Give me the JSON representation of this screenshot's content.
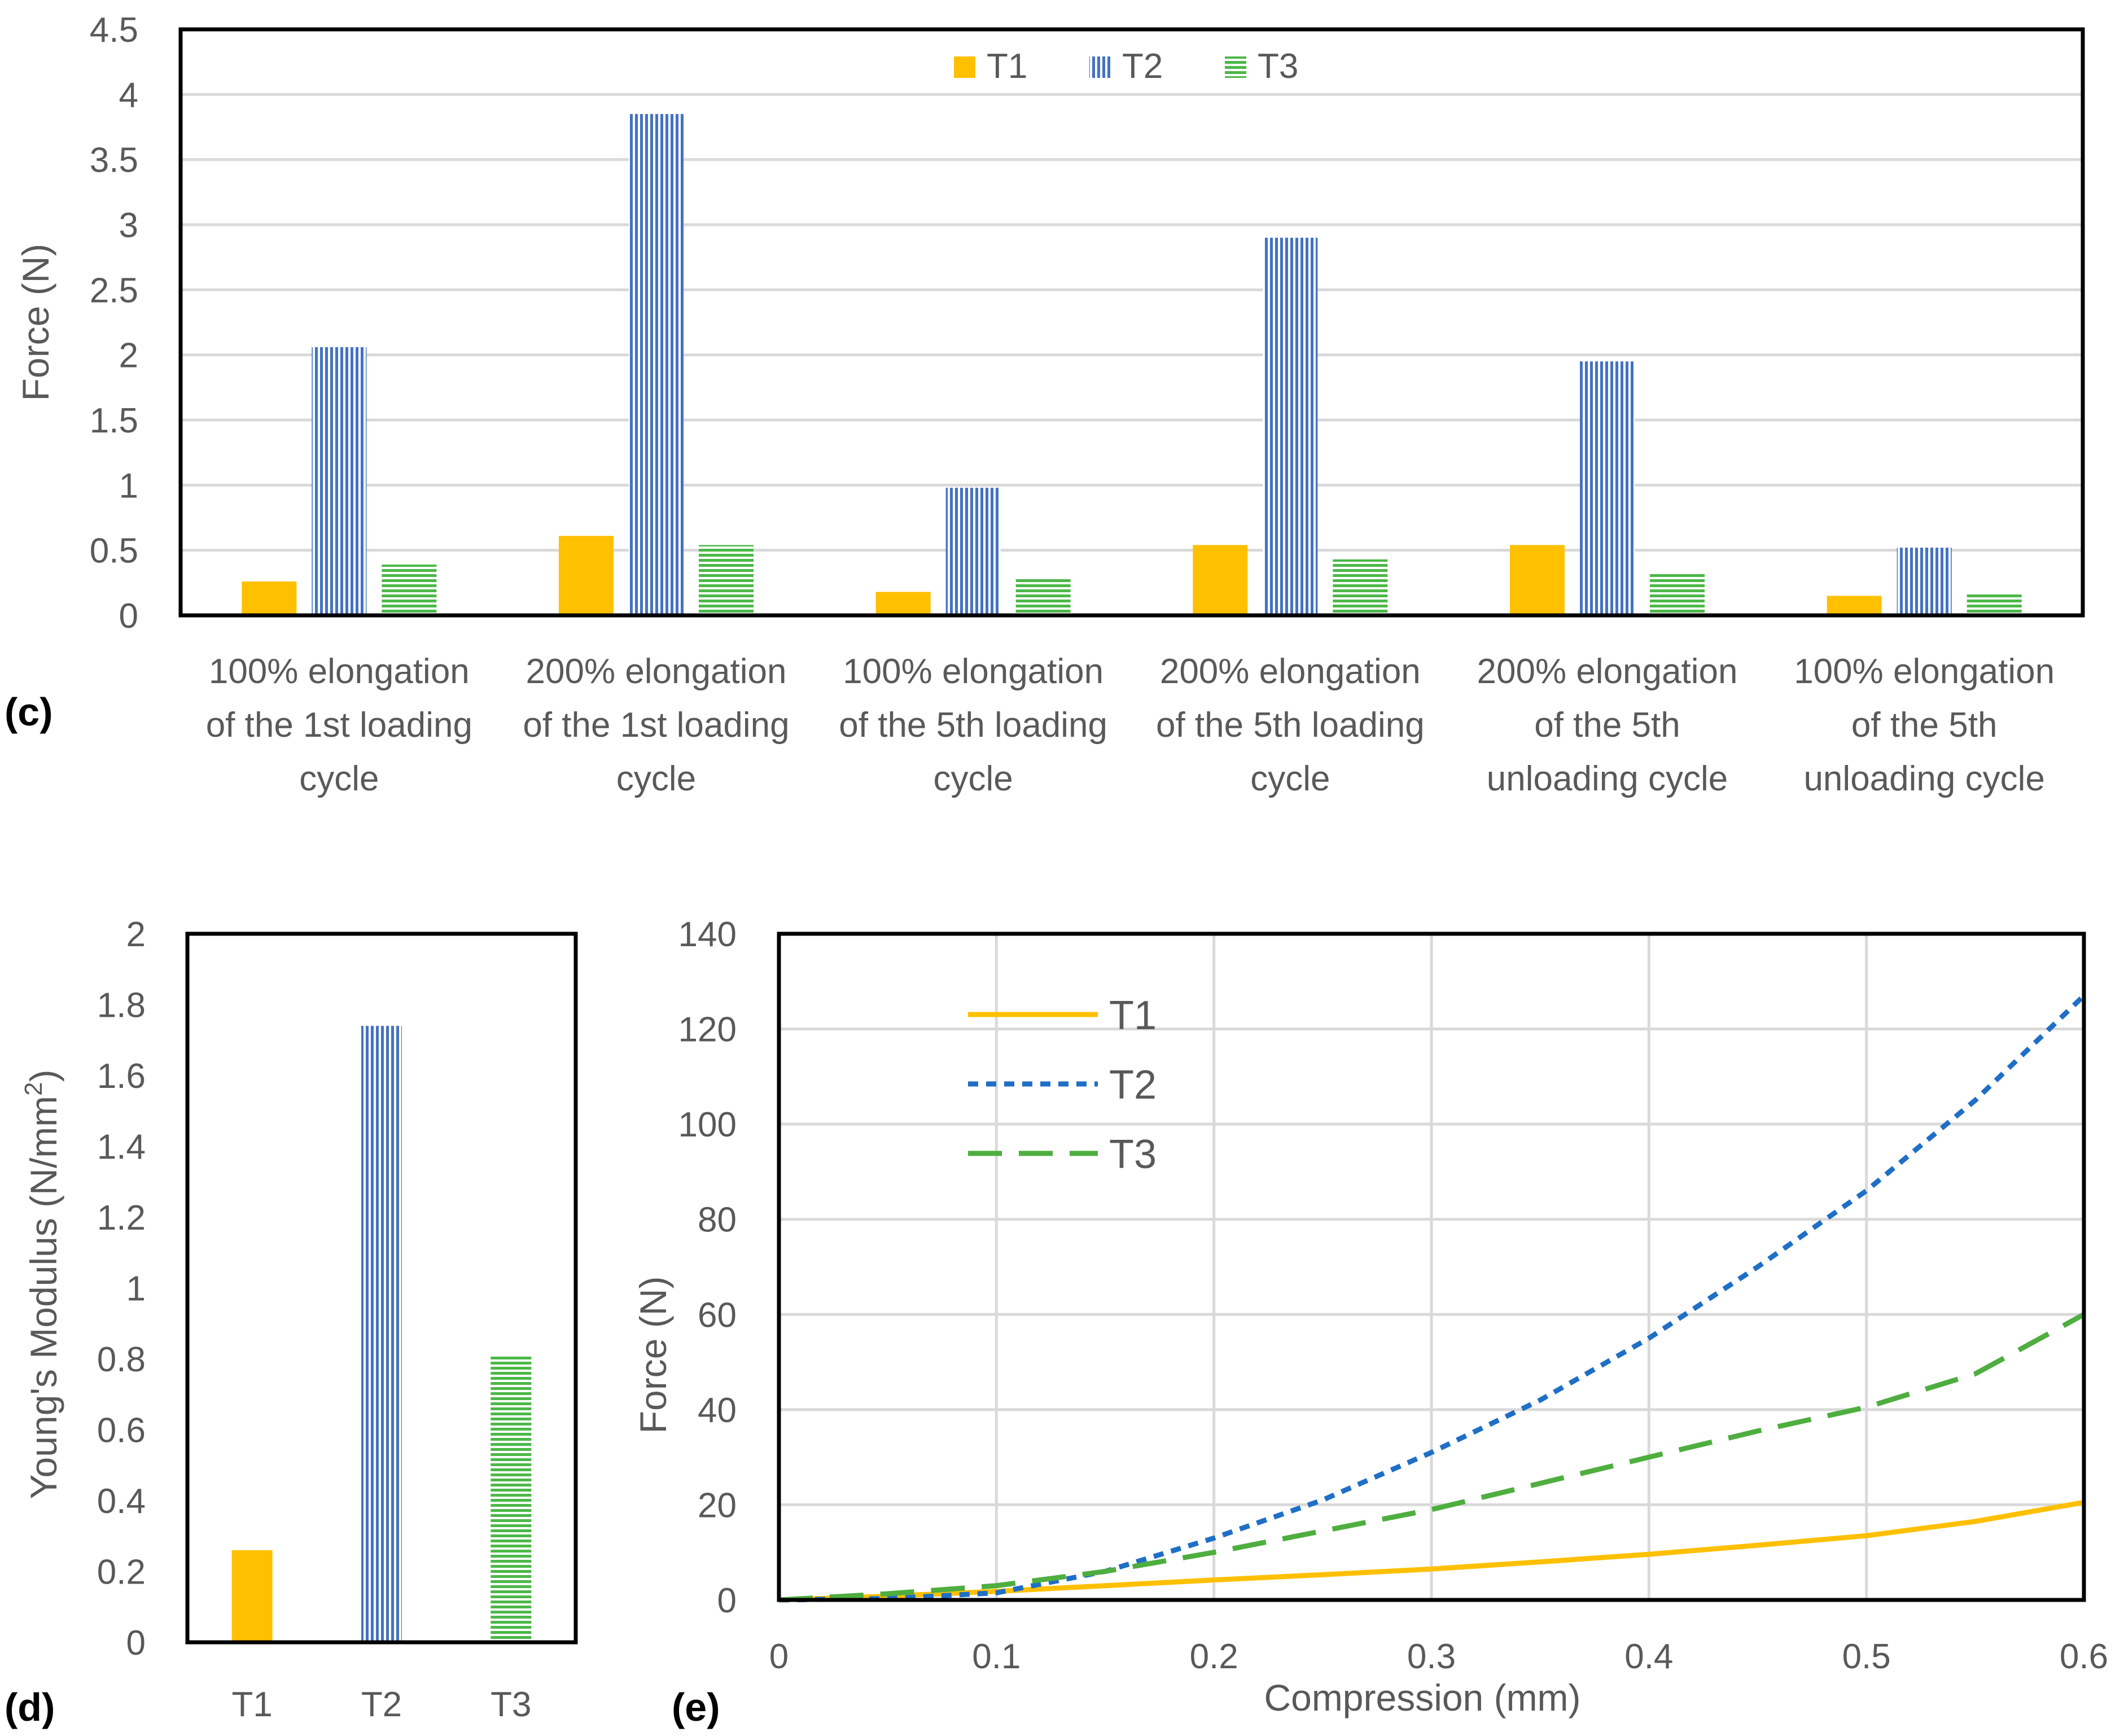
{
  "chart_data": [
    {
      "panel_label": "(c)",
      "type": "bar",
      "title": "",
      "ylabel": "Force (N)",
      "xlabel": "",
      "ylim": [
        0,
        4.5
      ],
      "yticks": [
        "0",
        "0.5",
        "1",
        "1.5",
        "2",
        "2.5",
        "3",
        "3.5",
        "4",
        "4.5"
      ],
      "categories": [
        [
          "100% elongation",
          "of the 1st loading",
          "cycle"
        ],
        [
          "200% elongation",
          "of the 1st loading",
          "cycle"
        ],
        [
          "100% elongation",
          "of the 5th loading",
          "cycle"
        ],
        [
          "200% elongation",
          "of the 5th loading",
          "cycle"
        ],
        [
          "200% elongation",
          "of the 5th",
          "unloading cycle"
        ],
        [
          "100% elongation",
          "of the 5th",
          "unloading cycle"
        ]
      ],
      "series": [
        {
          "name": "T1",
          "values": [
            0.26,
            0.61,
            0.18,
            0.54,
            0.54,
            0.15
          ]
        },
        {
          "name": "T2",
          "values": [
            2.06,
            3.85,
            0.98,
            2.9,
            1.95,
            0.52
          ]
        },
        {
          "name": "T3",
          "values": [
            0.39,
            0.54,
            0.28,
            0.43,
            0.32,
            0.17
          ]
        }
      ],
      "grid": true,
      "legend": "top"
    },
    {
      "panel_label": "(d)",
      "type": "bar",
      "title": "",
      "ylabel": "Young's Modulus (N/mm",
      "ylabel_sup": "2",
      "ylabel_end": ")",
      "xlabel": "",
      "ylim": [
        0,
        2
      ],
      "yticks": [
        "0",
        "0.2",
        "0.4",
        "0.6",
        "0.8",
        "1",
        "1.2",
        "1.4",
        "1.6",
        "1.8",
        "2"
      ],
      "categories": [
        "T1",
        "T2",
        "T3"
      ],
      "values": [
        0.26,
        1.74,
        0.81
      ],
      "grid": false
    },
    {
      "panel_label": "(e)",
      "type": "line",
      "title": "",
      "xlabel": "Compression (mm)",
      "ylabel": "Force (N)",
      "xlim": [
        0,
        0.6
      ],
      "ylim": [
        0,
        140
      ],
      "xticks": [
        "0",
        "0.1",
        "0.2",
        "0.3",
        "0.4",
        "0.5",
        "0.6"
      ],
      "yticks": [
        "0",
        "20",
        "40",
        "60",
        "80",
        "100",
        "120",
        "140"
      ],
      "series": [
        {
          "name": "T1",
          "x": [
            0,
            0.05,
            0.1,
            0.15,
            0.2,
            0.25,
            0.3,
            0.35,
            0.4,
            0.45,
            0.5,
            0.55,
            0.6
          ],
          "y": [
            0,
            0.8,
            1.8,
            3,
            4.2,
            5.3,
            6.5,
            8,
            9.6,
            11.5,
            13.5,
            16.5,
            20.5
          ]
        },
        {
          "name": "T2",
          "x": [
            0,
            0.05,
            0.1,
            0.15,
            0.2,
            0.25,
            0.3,
            0.35,
            0.4,
            0.45,
            0.5,
            0.55,
            0.6
          ],
          "y": [
            0,
            0.3,
            1.5,
            6,
            13,
            21,
            31,
            42,
            55,
            70,
            86,
            105,
            127
          ]
        },
        {
          "name": "T3",
          "x": [
            0,
            0.05,
            0.1,
            0.15,
            0.2,
            0.25,
            0.3,
            0.35,
            0.4,
            0.45,
            0.5,
            0.55,
            0.6
          ],
          "y": [
            0,
            1.3,
            3,
            6,
            10,
            14.5,
            19,
            24.5,
            30,
            35.5,
            40.5,
            47.5,
            60
          ]
        }
      ],
      "grid": true,
      "legend": "top-left"
    }
  ],
  "colors": {
    "T1": "#FFC000",
    "T2": "#4472C4",
    "T2_line": "#1F6FC6",
    "T3": "#4CB848",
    "T3_line": "#4EAE3F",
    "grid": "#D9D9D9",
    "axis_text": "#595959"
  }
}
